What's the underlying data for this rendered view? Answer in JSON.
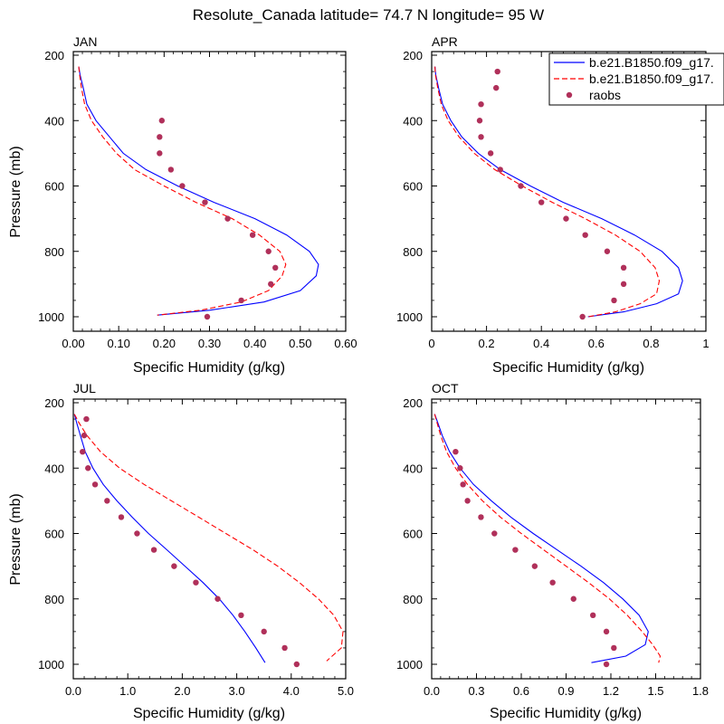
{
  "title": "Resolute_Canada  latitude= 74.7 N longitude= 95 W",
  "legend": {
    "entries": [
      {
        "label": "b.e21.B1850.f09_g17.",
        "style": "line",
        "color": "#0000ff"
      },
      {
        "label": "b.e21.B1850.f09_g17.",
        "style": "dash",
        "color": "#ff0000"
      },
      {
        "label": "raobs",
        "style": "marker",
        "color": "#b0305a"
      }
    ]
  },
  "chart_data": [
    {
      "type": "line",
      "title": "JAN",
      "xlabel": "Specific Humidity (g/kg)",
      "ylabel": "Pressure (mb)",
      "xlim": [
        0,
        0.6
      ],
      "ylim": [
        1000,
        200
      ],
      "xticks": [
        0,
        0.1,
        0.2,
        0.3,
        0.4,
        0.5,
        0.6
      ],
      "xticklabels": [
        "0.00",
        "0.10",
        "0.20",
        "0.30",
        "0.40",
        "0.50",
        "0.60"
      ],
      "yticks": [
        200,
        400,
        600,
        800,
        1000
      ],
      "yticklabels": [
        "200",
        "400",
        "600",
        "800",
        "1000"
      ],
      "series": [
        {
          "style": "line",
          "color": "#0000ff",
          "x": [
            0.012,
            0.015,
            0.022,
            0.03,
            0.05,
            0.08,
            0.11,
            0.16,
            0.23,
            0.31,
            0.4,
            0.47,
            0.52,
            0.54,
            0.535,
            0.5,
            0.42,
            0.3,
            0.185
          ],
          "y": [
            235,
            260,
            300,
            350,
            400,
            450,
            500,
            550,
            600,
            650,
            700,
            750,
            800,
            840,
            875,
            920,
            955,
            980,
            995
          ]
        },
        {
          "style": "dash",
          "color": "#ff0000",
          "x": [
            0.012,
            0.014,
            0.018,
            0.025,
            0.04,
            0.065,
            0.095,
            0.135,
            0.2,
            0.27,
            0.35,
            0.41,
            0.455,
            0.468,
            0.46,
            0.43,
            0.37,
            0.28,
            0.185
          ],
          "y": [
            235,
            260,
            300,
            350,
            400,
            450,
            500,
            550,
            600,
            650,
            700,
            750,
            800,
            840,
            875,
            920,
            955,
            980,
            995
          ]
        },
        {
          "style": "marker",
          "color": "#b0305a",
          "x": [
            0.195,
            0.19,
            0.19,
            0.215,
            0.24,
            0.29,
            0.34,
            0.395,
            0.43,
            0.445,
            0.435,
            0.37,
            0.295
          ],
          "y": [
            400,
            450,
            500,
            550,
            600,
            650,
            700,
            750,
            800,
            850,
            900,
            950,
            1000
          ]
        }
      ]
    },
    {
      "type": "line",
      "title": "APR",
      "xlabel": "Specific Humidity (g/kg)",
      "ylabel": "",
      "xlim": [
        0,
        1
      ],
      "ylim": [
        1000,
        200
      ],
      "xticks": [
        0,
        0.2,
        0.4,
        0.6,
        0.8,
        1.0
      ],
      "xticklabels": [
        "0",
        "0.2",
        "0.4",
        "0.6",
        "0.8",
        "1"
      ],
      "yticks": [
        200,
        400,
        600,
        800,
        1000
      ],
      "yticklabels": [
        "200",
        "400",
        "600",
        "800",
        "1000"
      ],
      "series": [
        {
          "style": "line",
          "color": "#0000ff",
          "x": [
            0.012,
            0.015,
            0.025,
            0.04,
            0.07,
            0.11,
            0.17,
            0.25,
            0.36,
            0.48,
            0.62,
            0.74,
            0.84,
            0.9,
            0.915,
            0.9,
            0.82,
            0.7,
            0.57
          ],
          "y": [
            235,
            260,
            300,
            350,
            400,
            450,
            500,
            550,
            600,
            650,
            700,
            750,
            800,
            850,
            890,
            930,
            960,
            985,
            1000
          ]
        },
        {
          "style": "dash",
          "color": "#ff0000",
          "x": [
            0.012,
            0.014,
            0.022,
            0.035,
            0.06,
            0.1,
            0.155,
            0.23,
            0.33,
            0.44,
            0.56,
            0.67,
            0.76,
            0.815,
            0.83,
            0.82,
            0.76,
            0.67,
            0.57
          ],
          "y": [
            235,
            260,
            300,
            350,
            400,
            450,
            500,
            550,
            600,
            650,
            700,
            750,
            800,
            850,
            890,
            930,
            960,
            985,
            1000
          ]
        },
        {
          "style": "marker",
          "color": "#b0305a",
          "x": [
            0.24,
            0.235,
            0.18,
            0.175,
            0.18,
            0.215,
            0.25,
            0.325,
            0.4,
            0.49,
            0.56,
            0.64,
            0.7,
            0.7,
            0.665,
            0.55
          ],
          "y": [
            250,
            300,
            350,
            400,
            450,
            500,
            550,
            600,
            650,
            700,
            750,
            800,
            850,
            900,
            950,
            1000
          ]
        }
      ]
    },
    {
      "type": "line",
      "title": "JUL",
      "xlabel": "Specific Humidity (g/kg)",
      "ylabel": "Pressure (mb)",
      "xlim": [
        0,
        5
      ],
      "ylim": [
        1000,
        200
      ],
      "xticks": [
        0,
        1,
        2,
        3,
        4,
        5
      ],
      "xticklabels": [
        "0.0",
        "1.0",
        "2.0",
        "3.0",
        "4.0",
        "5.0"
      ],
      "yticks": [
        200,
        400,
        600,
        800,
        1000
      ],
      "yticklabels": [
        "200",
        "400",
        "600",
        "800",
        "1000"
      ],
      "series": [
        {
          "style": "line",
          "color": "#0000ff",
          "x": [
            0.02,
            0.06,
            0.13,
            0.22,
            0.36,
            0.55,
            0.8,
            1.08,
            1.38,
            1.72,
            2.05,
            2.38,
            2.68,
            2.93,
            3.15,
            3.35,
            3.52
          ],
          "y": [
            235,
            260,
            300,
            350,
            400,
            450,
            500,
            550,
            600,
            650,
            700,
            750,
            800,
            850,
            900,
            950,
            995
          ]
        },
        {
          "style": "dash",
          "color": "#ff0000",
          "x": [
            0.02,
            0.1,
            0.25,
            0.5,
            0.85,
            1.3,
            1.8,
            2.3,
            2.8,
            3.3,
            3.75,
            4.15,
            4.5,
            4.78,
            4.95,
            4.92,
            4.65
          ],
          "y": [
            235,
            260,
            300,
            350,
            400,
            450,
            500,
            550,
            600,
            650,
            700,
            750,
            800,
            850,
            900,
            950,
            990
          ]
        },
        {
          "style": "marker",
          "color": "#b0305a",
          "x": [
            0.24,
            0.2,
            0.17,
            0.27,
            0.4,
            0.62,
            0.88,
            1.17,
            1.48,
            1.85,
            2.25,
            2.65,
            3.08,
            3.5,
            3.88,
            4.1
          ],
          "y": [
            250,
            300,
            350,
            400,
            450,
            500,
            550,
            600,
            650,
            700,
            750,
            800,
            850,
            900,
            950,
            1000
          ]
        }
      ]
    },
    {
      "type": "line",
      "title": "OCT",
      "xlabel": "Specific Humidity (g/kg)",
      "ylabel": "",
      "xlim": [
        0,
        1.8
      ],
      "ylim": [
        1000,
        200
      ],
      "xticks": [
        0,
        0.3,
        0.6,
        0.9,
        1.2,
        1.5,
        1.8
      ],
      "xticklabels": [
        "0.0",
        "0.3",
        "0.6",
        "0.9",
        "1.2",
        "1.5",
        "1.8"
      ],
      "yticks": [
        200,
        400,
        600,
        800,
        1000
      ],
      "yticklabels": [
        "200",
        "400",
        "600",
        "800",
        "1000"
      ],
      "series": [
        {
          "style": "line",
          "color": "#0000ff",
          "x": [
            0.02,
            0.04,
            0.07,
            0.12,
            0.19,
            0.28,
            0.4,
            0.53,
            0.68,
            0.84,
            1.0,
            1.15,
            1.28,
            1.39,
            1.45,
            1.43,
            1.3,
            1.07
          ],
          "y": [
            235,
            260,
            300,
            350,
            400,
            450,
            500,
            550,
            600,
            650,
            700,
            750,
            800,
            850,
            900,
            940,
            975,
            995
          ]
        },
        {
          "style": "dash",
          "color": "#ff0000",
          "x": [
            0.02,
            0.035,
            0.06,
            0.1,
            0.16,
            0.24,
            0.34,
            0.46,
            0.6,
            0.75,
            0.9,
            1.05,
            1.19,
            1.31,
            1.41,
            1.48,
            1.53,
            1.52
          ],
          "y": [
            235,
            260,
            300,
            350,
            400,
            450,
            500,
            550,
            600,
            650,
            700,
            750,
            800,
            850,
            900,
            940,
            975,
            995
          ]
        },
        {
          "style": "marker",
          "color": "#b0305a",
          "x": [
            0.16,
            0.19,
            0.21,
            0.24,
            0.33,
            0.42,
            0.56,
            0.69,
            0.81,
            0.95,
            1.08,
            1.17,
            1.22,
            1.17
          ],
          "y": [
            350,
            400,
            450,
            500,
            550,
            600,
            650,
            700,
            750,
            800,
            850,
            900,
            950,
            1000
          ]
        }
      ]
    }
  ]
}
